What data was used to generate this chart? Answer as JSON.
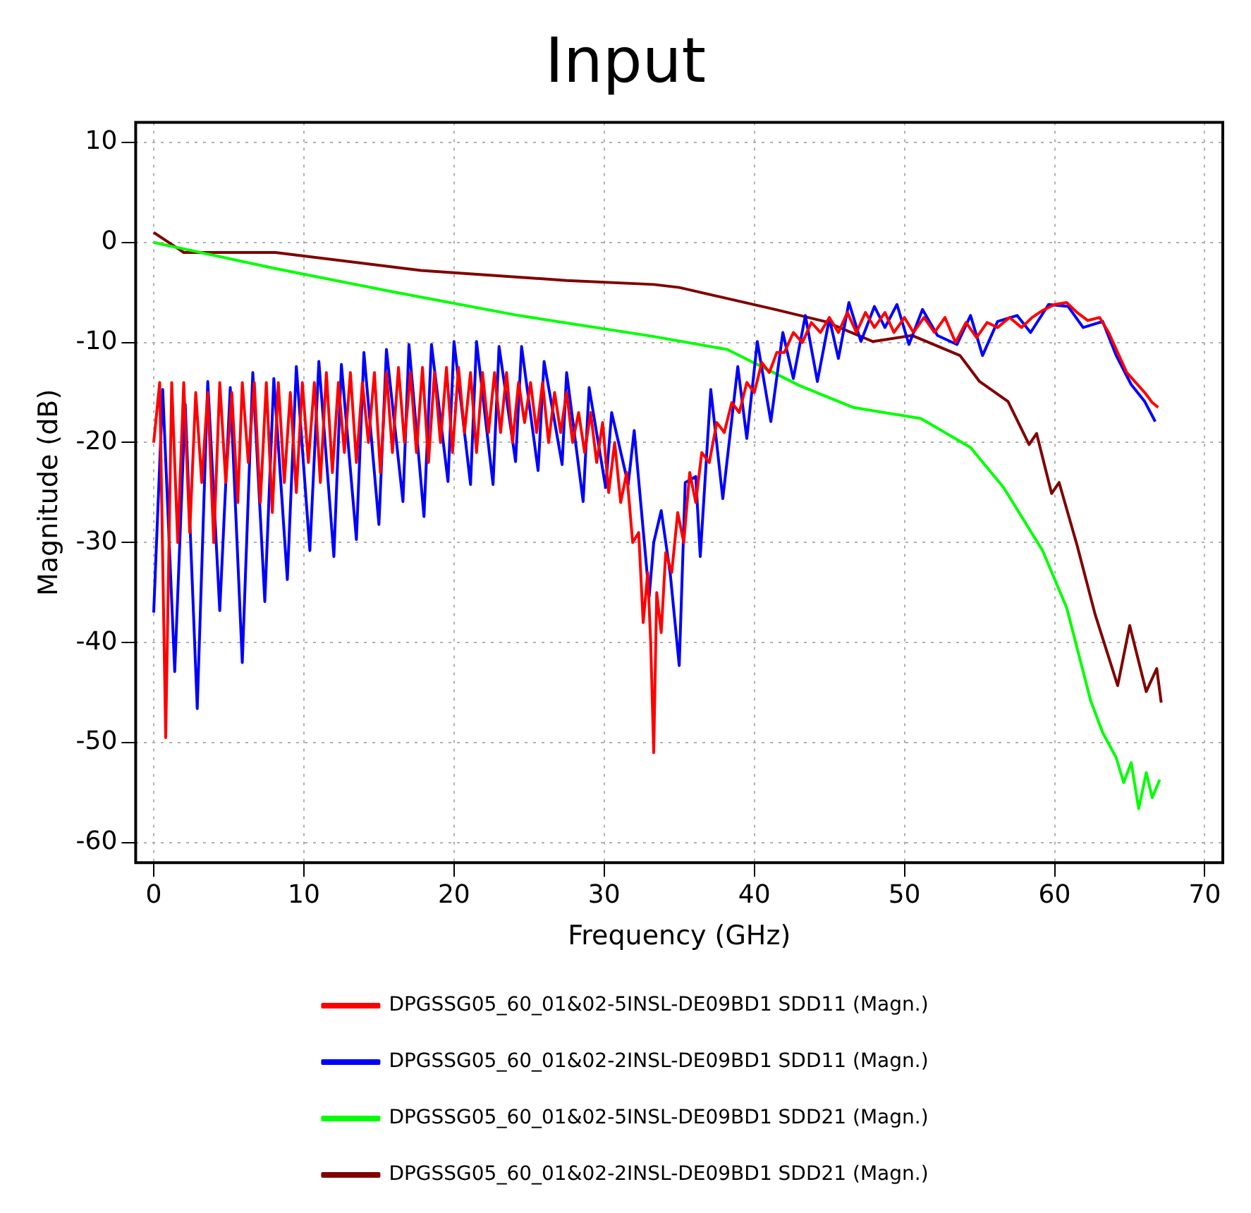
{
  "chart_data": {
    "type": "line",
    "title": "Input",
    "xlabel": "Frequency (GHz)",
    "ylabel": "Magnitude (dB)",
    "xlim": [
      -1.2,
      71.2
    ],
    "ylim": [
      -62,
      12
    ],
    "xticks": [
      0,
      10,
      20,
      30,
      40,
      50,
      60,
      70
    ],
    "yticks": [
      -60,
      -50,
      -40,
      -30,
      -20,
      -10,
      0,
      10
    ],
    "grid": true,
    "legend": "bottom",
    "marker": "none",
    "line_style": "solid",
    "series": [
      {
        "name": "DPGSSG05_60_01&02-5INSL-DE09BD1 SDD11 (Magn.)",
        "color": "#ff0000",
        "x": [
          0,
          0.4,
          0.8,
          1.2,
          1.6,
          2.0,
          2.4,
          2.8,
          3.2,
          3.6,
          4.0,
          4.4,
          4.8,
          5.2,
          5.6,
          5.9,
          6.3,
          6.7,
          7.1,
          7.5,
          7.9,
          8.3,
          8.7,
          9.1,
          9.5,
          9.9,
          10.3,
          10.7,
          11.1,
          11.5,
          11.9,
          12.3,
          12.7,
          13.1,
          13.5,
          13.9,
          14.3,
          14.7,
          15.1,
          15.5,
          15.9,
          16.3,
          16.7,
          17.1,
          17.5,
          17.9,
          18.3,
          18.7,
          19.1,
          19.5,
          19.9,
          20.3,
          20.7,
          21.1,
          21.5,
          21.9,
          22.3,
          22.7,
          23.1,
          23.5,
          23.9,
          24.3,
          24.7,
          25.1,
          25.5,
          25.9,
          26.3,
          26.7,
          27.1,
          27.5,
          27.9,
          28.3,
          28.7,
          29.1,
          29.5,
          29.9,
          30.3,
          30.7,
          31.1,
          31.5,
          31.9,
          32.3,
          32.6,
          32.9,
          33.1,
          33.3,
          33.5,
          33.8,
          34.1,
          34.5,
          34.9,
          35.3,
          35.7,
          36.1,
          36.5,
          37,
          37.5,
          38,
          38.5,
          39,
          39.5,
          40,
          40.5,
          41,
          41.5,
          42,
          42.6,
          43.2,
          43.8,
          44.4,
          45,
          45.6,
          46.2,
          46.8,
          47.4,
          48,
          48.7,
          49.3,
          50,
          50.6,
          51.3,
          52,
          52.7,
          53.4,
          54.1,
          54.8,
          55.5,
          56.2,
          57,
          57.8,
          58.5,
          59.2,
          60,
          60.8,
          61.5,
          62.2,
          63,
          63.6,
          64.2,
          64.8,
          65.4,
          66,
          66.5,
          66.9
        ],
        "values": [
          -20,
          -14,
          -49.5,
          -14,
          -30,
          -14,
          -29,
          -15,
          -24,
          -15,
          -30,
          -14,
          -24,
          -15,
          -26,
          -14,
          -22,
          -14,
          -26,
          -14,
          -27,
          -14,
          -24,
          -15,
          -25,
          -14,
          -22,
          -14,
          -24,
          -13,
          -23,
          -14,
          -21,
          -13,
          -22,
          -14,
          -20,
          -13,
          -23,
          -13,
          -21,
          -12.5,
          -20,
          -13,
          -21,
          -12.5,
          -22,
          -13,
          -20,
          -12.5,
          -21,
          -12.5,
          -19,
          -13,
          -21,
          -13,
          -19,
          -13,
          -19,
          -13,
          -20,
          -14,
          -18,
          -14,
          -19,
          -14,
          -20,
          -15,
          -19,
          -15,
          -20,
          -17,
          -21,
          -17,
          -22,
          -18,
          -25,
          -20,
          -26,
          -23,
          -30,
          -29,
          -38,
          -33,
          -40,
          -51,
          -35,
          -39,
          -31,
          -33,
          -27,
          -30,
          -23,
          -26,
          -21,
          -22,
          -18,
          -19,
          -16,
          -17,
          -14,
          -15,
          -12,
          -13,
          -11,
          -11,
          -9,
          -10,
          -8,
          -9,
          -7.5,
          -9,
          -7,
          -9,
          -7,
          -8.5,
          -7,
          -9,
          -7.5,
          -9,
          -7.5,
          -9,
          -7.5,
          -10,
          -8,
          -9.5,
          -8,
          -8.5,
          -7.5,
          -8.5,
          -7.5,
          -6.8,
          -6.2,
          -6,
          -7,
          -7.8,
          -7.5,
          -9,
          -11,
          -13,
          -14,
          -15,
          -16,
          -16.5
        ]
      },
      {
        "name": "DPGSSG05_60_01&02-2INSL-DE09BD1 SDD11 (Magn.)",
        "color": "#0000ff",
        "x": [
          0,
          0.6,
          1.4,
          2.1,
          2.9,
          3.6,
          4.4,
          5.1,
          5.9,
          6.6,
          7.4,
          8.0,
          8.9,
          9.5,
          10.4,
          11.0,
          12.0,
          12.5,
          13.5,
          14.0,
          15.0,
          15.5,
          16.6,
          17.0,
          18.0,
          18.5,
          19.6,
          20.0,
          21.1,
          21.5,
          22.6,
          23.0,
          24.1,
          24.5,
          25.6,
          26.0,
          27.2,
          27.5,
          28.6,
          29.0,
          30.1,
          30.5,
          31.6,
          32.0,
          33.0,
          33.3,
          33.8,
          34.4,
          35.0,
          35.4,
          36.1,
          36.4,
          37.1,
          37.9,
          38.9,
          39.5,
          40.2,
          41.1,
          41.9,
          42.6,
          43.4,
          44.2,
          45.0,
          45.6,
          46.3,
          47.1,
          48.0,
          48.7,
          49.5,
          50.3,
          51.2,
          52.2,
          53.5,
          54.4,
          55.2,
          56.2,
          57.5,
          58.4,
          59.6,
          60.9,
          61.9,
          63.2,
          64.1,
          65.1,
          66.0,
          66.7
        ],
        "values": [
          -37,
          -14.7,
          -42.9,
          -16.2,
          -46.6,
          -13.9,
          -36.8,
          -14.5,
          -42,
          -13,
          -35.9,
          -13.6,
          -33.7,
          -12.4,
          -30.8,
          -11.9,
          -31.4,
          -12.2,
          -29.7,
          -11,
          -28.2,
          -10.7,
          -25.9,
          -10.2,
          -27.4,
          -10.2,
          -23.9,
          -9.9,
          -24.2,
          -9.9,
          -24.2,
          -10.4,
          -21.9,
          -10.4,
          -22.8,
          -11.9,
          -22.2,
          -13,
          -25.9,
          -14.5,
          -24.5,
          -17,
          -24.2,
          -18.8,
          -35.4,
          -30,
          -26.8,
          -33.1,
          -42.3,
          -24,
          -23.4,
          -31.4,
          -14.7,
          -25.6,
          -12.4,
          -19.6,
          -9.9,
          -17.9,
          -9,
          -13.6,
          -7.3,
          -13.9,
          -7.6,
          -11.6,
          -6,
          -9.9,
          -6.4,
          -8.5,
          -6.2,
          -10.2,
          -6.7,
          -9.3,
          -10.2,
          -7.3,
          -11.3,
          -7.9,
          -7.3,
          -9,
          -6.2,
          -6.4,
          -8.5,
          -7.9,
          -11.3,
          -14.2,
          -15.9,
          -17.9
        ]
      },
      {
        "name": "DPGSSG05_60_01&02-5INSL-DE09BD1 SDD21 (Magn.)",
        "color": "#00ff00",
        "x": [
          0,
          8.1,
          15.8,
          24.3,
          33.3,
          38.2,
          43,
          46.6,
          51.1,
          54.4,
          56.6,
          59.2,
          60.8,
          62.4,
          63.2,
          64.1,
          64.6,
          65.1,
          65.6,
          66.1,
          66.5,
          67
        ],
        "values": [
          0,
          -2.6,
          -4.9,
          -7.3,
          -9.4,
          -10.7,
          -14.3,
          -16.5,
          -17.6,
          -20.5,
          -24.5,
          -30.8,
          -36.5,
          -45.8,
          -49,
          -51.5,
          -54,
          -52,
          -56.6,
          -53,
          -55.5,
          -53.7
        ]
      },
      {
        "name": "DPGSSG05_60_01&02-2INSL-DE09BD1 SDD21 (Magn.)",
        "color": "#800000",
        "x": [
          0,
          2,
          8.1,
          17.8,
          27.5,
          33.3,
          35,
          41.4,
          44.7,
          47.9,
          50.5,
          53.7,
          55,
          56.9,
          58.3,
          58.8,
          59.8,
          60.3,
          61.5,
          62.7,
          64.2,
          65,
          66.1,
          66.8,
          67.1
        ],
        "values": [
          1,
          -1,
          -1,
          -2.8,
          -3.8,
          -4.2,
          -4.5,
          -6.7,
          -7.9,
          -9.9,
          -9.3,
          -11.3,
          -13.9,
          -15.9,
          -20.2,
          -19.1,
          -25.1,
          -24,
          -30.3,
          -37.2,
          -44.3,
          -38.3,
          -44.9,
          -42.6,
          -46
        ]
      }
    ]
  }
}
